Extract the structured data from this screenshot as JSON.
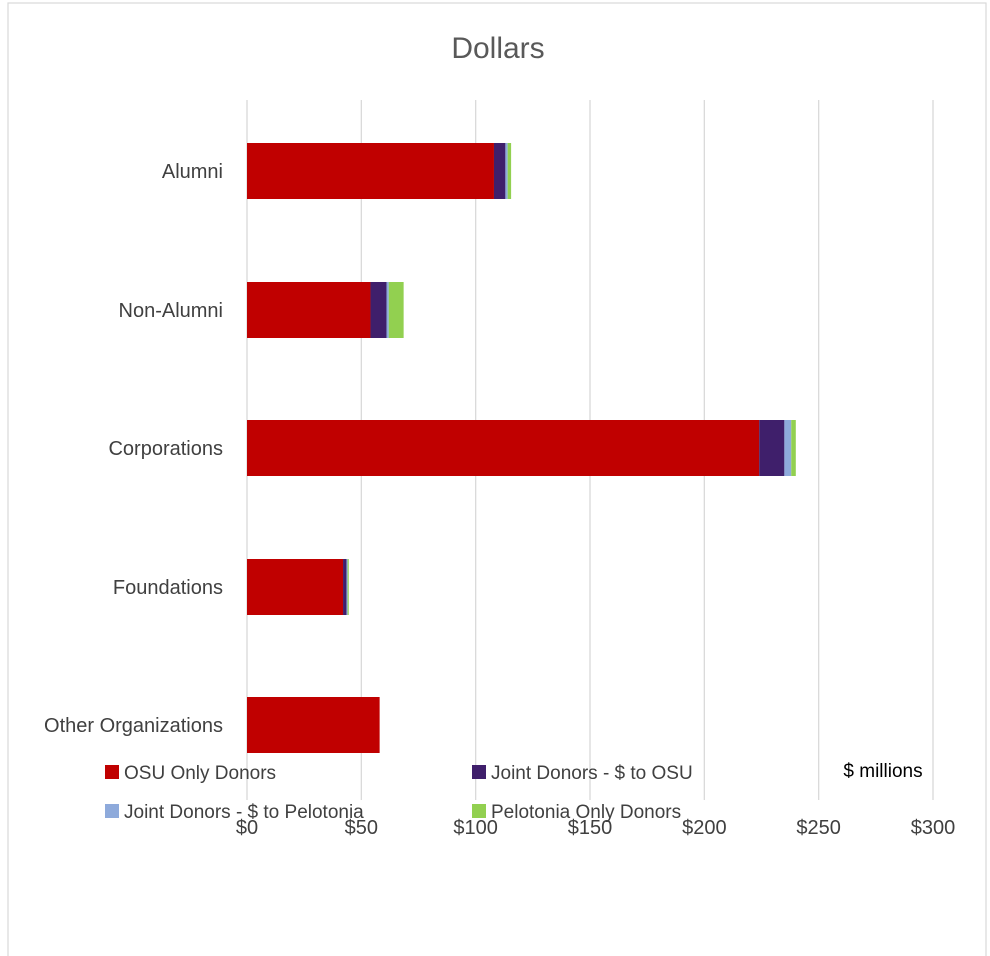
{
  "chart_data": {
    "type": "bar",
    "orientation": "horizontal",
    "stacked": true,
    "title": "Dollars",
    "units_label": "$ millions",
    "categories": [
      "Alumni",
      "Non-Alumni",
      "Corporations",
      "Foundations",
      "Other Organizations"
    ],
    "series": [
      {
        "name": "OSU Only Donors",
        "color": "#c00000",
        "values": [
          108,
          54,
          224,
          42,
          58
        ]
      },
      {
        "name": "Joint Donors - $ to OSU",
        "color": "#3f1f6b",
        "values": [
          5,
          7,
          11,
          1.5,
          0
        ]
      },
      {
        "name": "Joint Donors - $ to Pelotonia",
        "color": "#8eaadb",
        "values": [
          1,
          1,
          3,
          0.5,
          0
        ]
      },
      {
        "name": "Pelotonia Only Donors",
        "color": "#92d050",
        "values": [
          1.5,
          6.5,
          2,
          0.5,
          0
        ]
      }
    ],
    "x_ticks": [
      0,
      50,
      100,
      150,
      200,
      250,
      300
    ],
    "x_tick_labels": [
      "$0",
      "$50",
      "$100",
      "$150",
      "$200",
      "$250",
      "$300"
    ],
    "xlim": [
      0,
      300
    ],
    "grid": true,
    "legend_position": "bottom"
  }
}
